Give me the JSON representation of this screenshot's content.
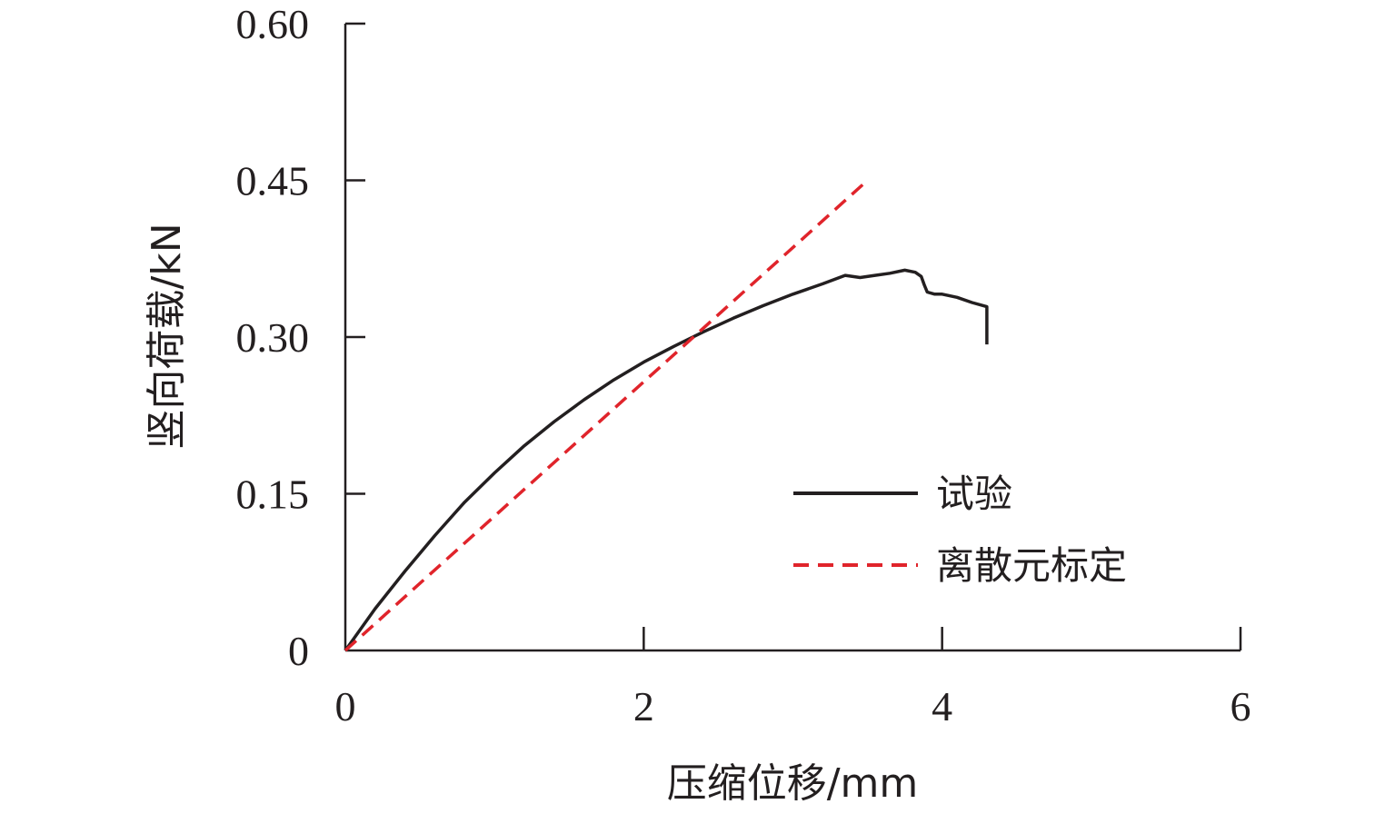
{
  "chart_data": {
    "type": "line",
    "xlabel": "压缩位移/mm",
    "ylabel": "竖向荷载/kN",
    "xlim": [
      0,
      6
    ],
    "ylim": [
      0,
      0.6
    ],
    "x_ticks": [
      0,
      2,
      4,
      6
    ],
    "x_tick_labels": [
      "0",
      "2",
      "4",
      "6"
    ],
    "y_ticks": [
      0,
      0.15,
      0.3,
      0.45,
      0.6
    ],
    "y_tick_labels": [
      "0",
      "0.15",
      "0.30",
      "0.45",
      "0.60"
    ],
    "grid": false,
    "legend_position": "right",
    "series": [
      {
        "name": "试验",
        "color": "#231f20",
        "style": "solid",
        "x": [
          0,
          0.2,
          0.4,
          0.6,
          0.8,
          1.0,
          1.2,
          1.4,
          1.6,
          1.8,
          2.0,
          2.2,
          2.4,
          2.6,
          2.8,
          3.0,
          3.2,
          3.35,
          3.45,
          3.55,
          3.65,
          3.75,
          3.82,
          3.86,
          3.88,
          3.9,
          3.95,
          4.0,
          4.1,
          4.2,
          4.3,
          4.3
        ],
        "y": [
          0,
          0.04,
          0.076,
          0.11,
          0.142,
          0.17,
          0.196,
          0.219,
          0.24,
          0.259,
          0.276,
          0.291,
          0.305,
          0.318,
          0.33,
          0.341,
          0.351,
          0.359,
          0.357,
          0.359,
          0.361,
          0.364,
          0.362,
          0.358,
          0.35,
          0.343,
          0.341,
          0.341,
          0.338,
          0.333,
          0.329,
          0.293
        ]
      },
      {
        "name": "离散元标定",
        "color": "#e0242b",
        "style": "dashed",
        "x": [
          0,
          3.5
        ],
        "y": [
          0,
          0.45
        ]
      }
    ]
  }
}
